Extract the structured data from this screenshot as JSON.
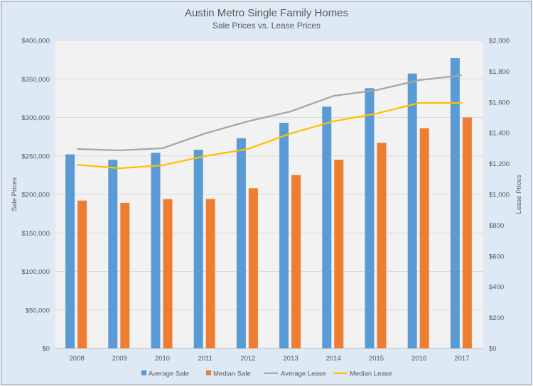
{
  "chart_data": {
    "type": "bar",
    "title": "Austin Metro Single Family Homes",
    "subtitle": "Sale Prices vs. Lease Prices",
    "categories": [
      "2008",
      "2009",
      "2010",
      "2011",
      "2012",
      "2013",
      "2014",
      "2015",
      "2016",
      "2017"
    ],
    "ylabel": "Sale Prices",
    "y2label": "Lease Prices",
    "ylim": [
      0,
      400000
    ],
    "y2lim": [
      0,
      2000
    ],
    "yticks": [
      "$0",
      "$50,000",
      "$100,000",
      "$150,000",
      "$200,000",
      "$250,000",
      "$300,000",
      "$350,000",
      "$400,000"
    ],
    "y2ticks": [
      "$0",
      "$200",
      "$400",
      "$600",
      "$800",
      "$1,000",
      "$1,200",
      "$1,400",
      "$1,600",
      "$1,800",
      "$2,000"
    ],
    "grid": true,
    "legend": "bottom",
    "series": [
      {
        "name": "Average Sale",
        "type": "bar",
        "axis": "left",
        "color": "#5b9bd5",
        "values": [
          252000,
          245000,
          254000,
          258000,
          273000,
          293000,
          314000,
          338000,
          357000,
          377000
        ]
      },
      {
        "name": "Median Sale",
        "type": "bar",
        "axis": "left",
        "color": "#ed7d31",
        "values": [
          192000,
          189000,
          194000,
          194000,
          208000,
          225000,
          245000,
          267000,
          286000,
          300000
        ]
      },
      {
        "name": "Average Lease",
        "type": "line",
        "axis": "right",
        "color": "#a5a5a5",
        "values": [
          1295,
          1286,
          1300,
          1396,
          1475,
          1539,
          1640,
          1677,
          1742,
          1774
        ]
      },
      {
        "name": "Median Lease",
        "type": "line",
        "axis": "right",
        "color": "#ffc000",
        "values": [
          1193,
          1170,
          1189,
          1249,
          1295,
          1396,
          1475,
          1525,
          1594,
          1594
        ]
      }
    ]
  }
}
